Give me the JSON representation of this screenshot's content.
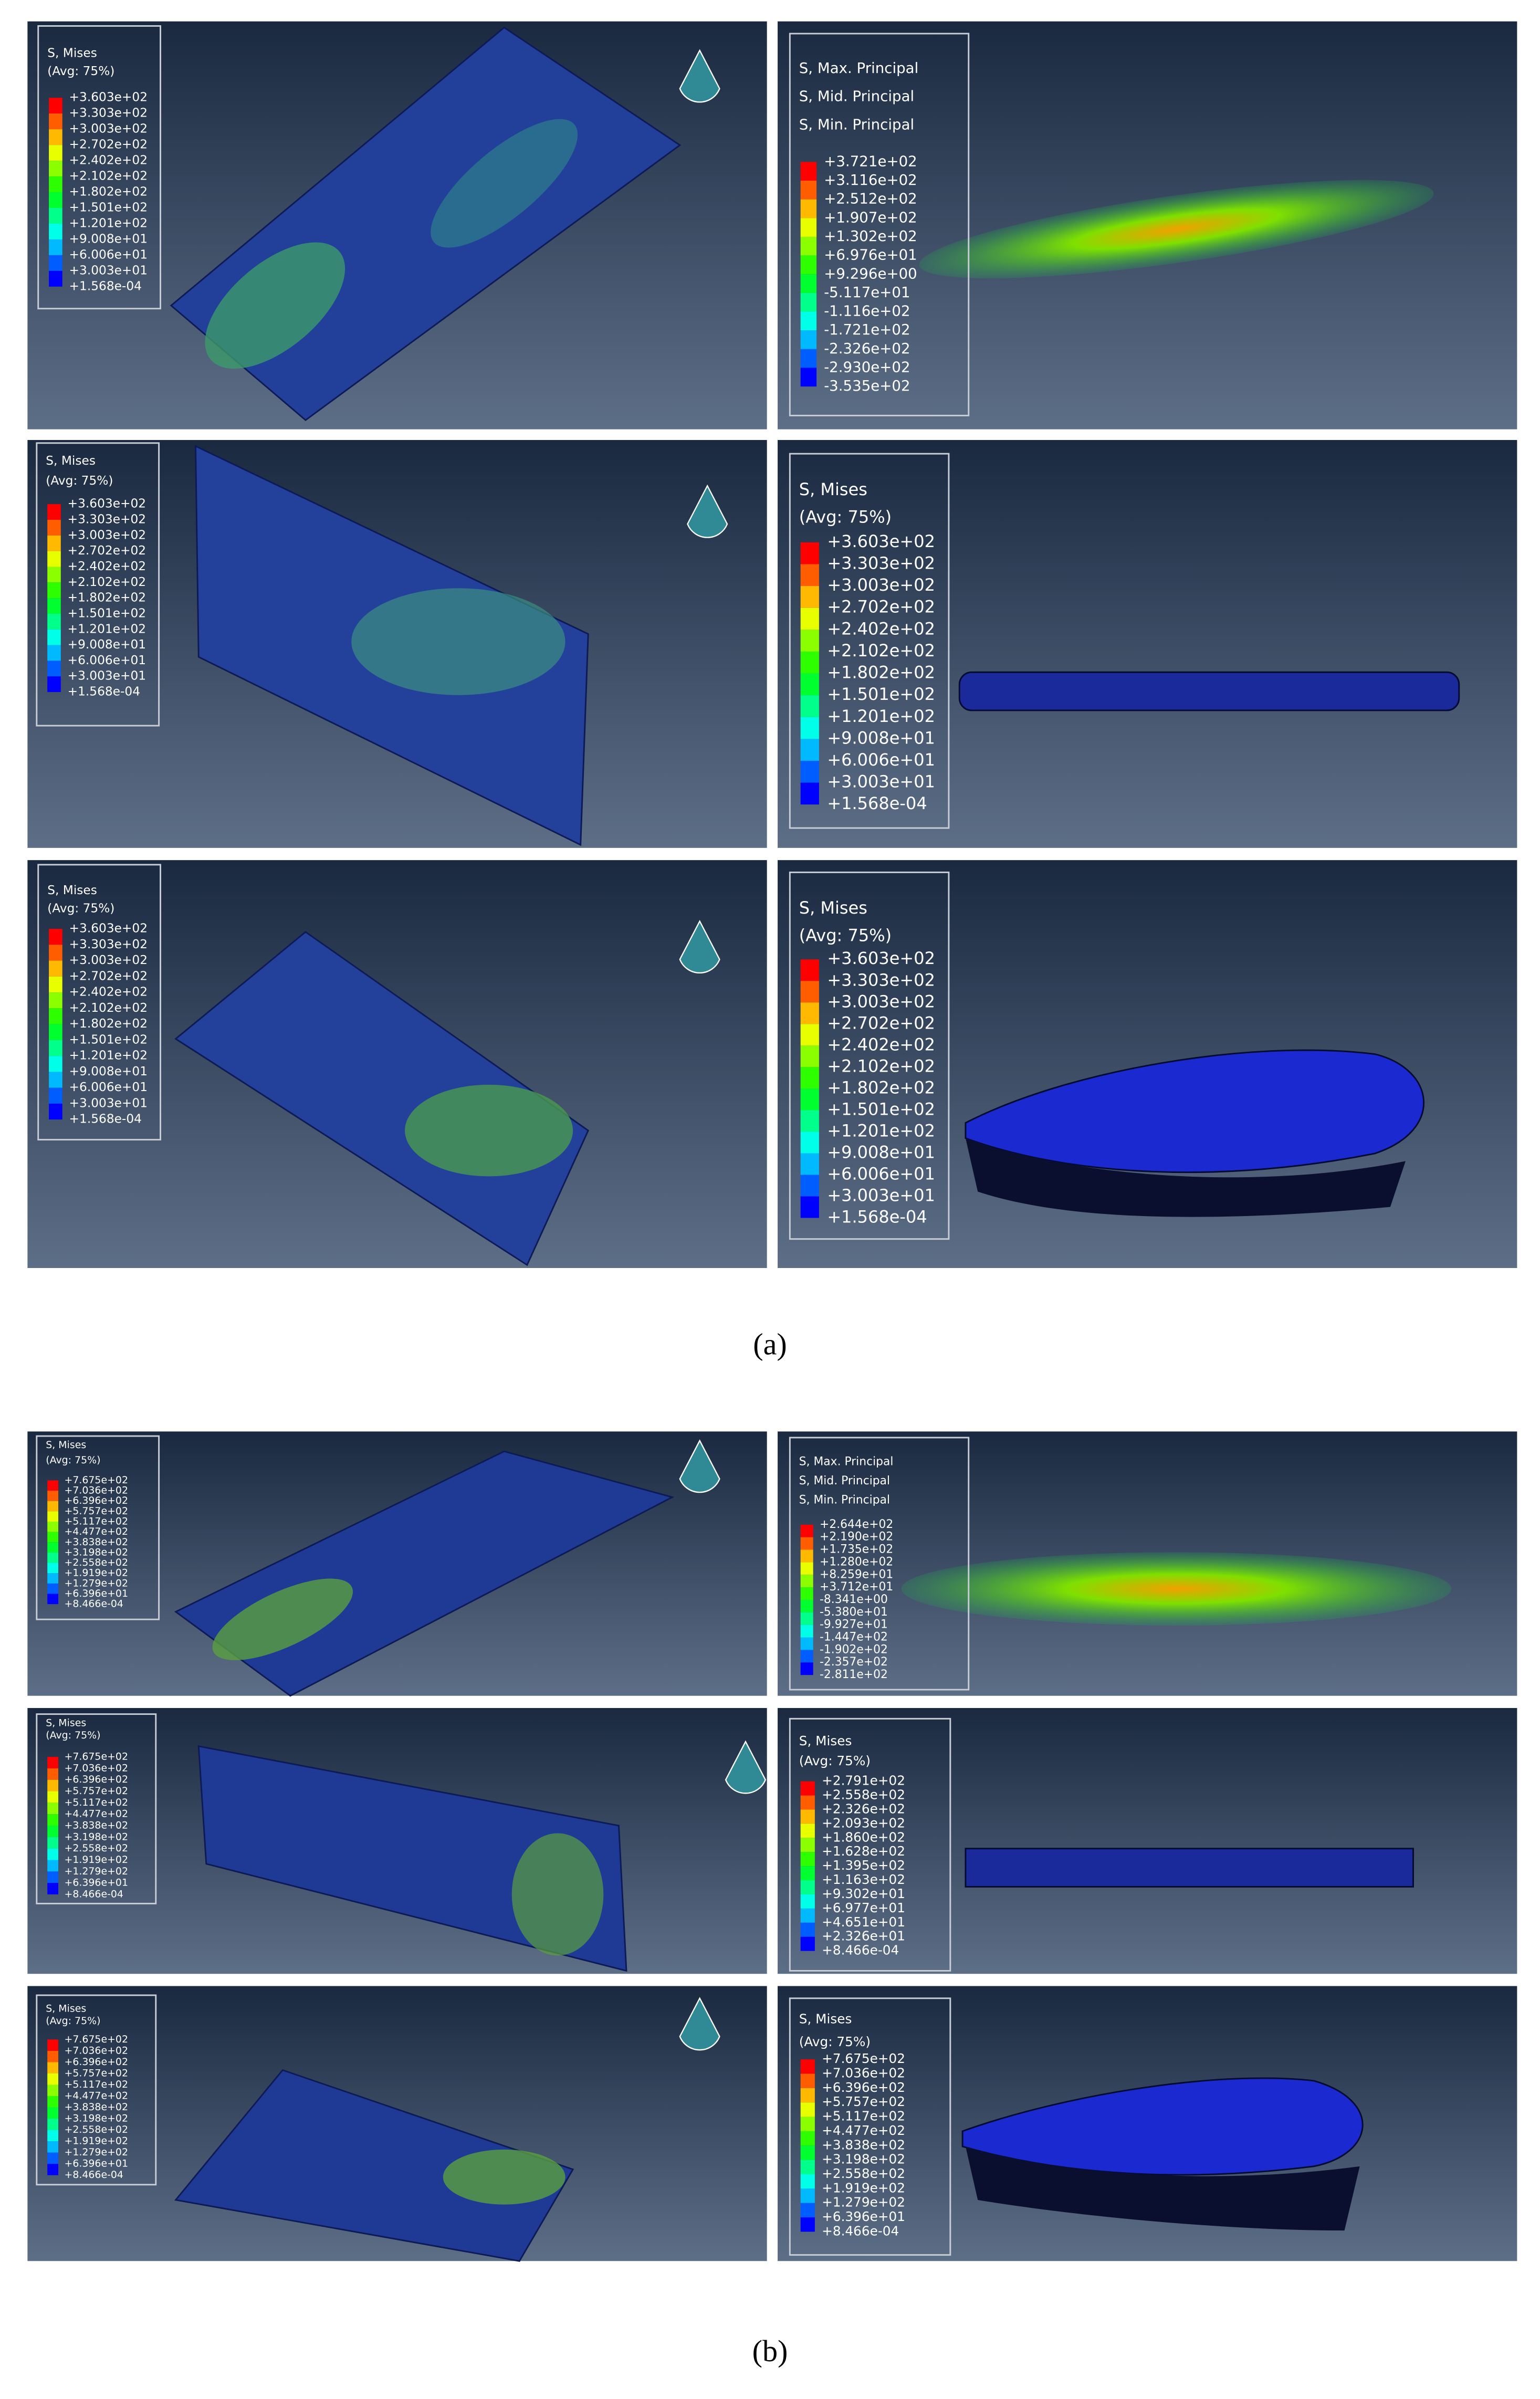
{
  "figures": [
    {
      "caption": "(a)",
      "panels": [
        {
          "legend_title": [
            "S, Mises",
            "(Avg: 75%)"
          ],
          "legend_labels": [
            "+3.603e+02",
            "+3.303e+02",
            "+3.003e+02",
            "+2.702e+02",
            "+2.402e+02",
            "+2.102e+02",
            "+1.802e+02",
            "+1.501e+02",
            "+1.201e+02",
            "+9.008e+01",
            "+6.006e+01",
            "+3.003e+01",
            "+1.568e-04"
          ]
        },
        {
          "legend_title": [
            "S, Max. Principal",
            "S, Mid. Principal",
            "S, Min. Principal"
          ],
          "legend_labels": [
            "+3.721e+02",
            "+3.116e+02",
            "+2.512e+02",
            "+1.907e+02",
            "+1.302e+02",
            "+6.976e+01",
            "+9.296e+00",
            "-5.117e+01",
            "-1.116e+02",
            "-1.721e+02",
            "-2.326e+02",
            "-2.930e+02",
            "-3.535e+02"
          ]
        },
        {
          "legend_title": [
            "S, Mises",
            "(Avg: 75%)"
          ],
          "legend_labels": [
            "+3.603e+02",
            "+3.303e+02",
            "+3.003e+02",
            "+2.702e+02",
            "+2.402e+02",
            "+2.102e+02",
            "+1.802e+02",
            "+1.501e+02",
            "+1.201e+02",
            "+9.008e+01",
            "+6.006e+01",
            "+3.003e+01",
            "+1.568e-04"
          ]
        },
        {
          "legend_title": [
            "S, Mises",
            "(Avg: 75%)"
          ],
          "legend_labels": [
            "+3.603e+02",
            "+3.303e+02",
            "+3.003e+02",
            "+2.702e+02",
            "+2.402e+02",
            "+2.102e+02",
            "+1.802e+02",
            "+1.501e+02",
            "+1.201e+02",
            "+9.008e+01",
            "+6.006e+01",
            "+3.003e+01",
            "+1.568e-04"
          ]
        },
        {
          "legend_title": [
            "S, Mises",
            "(Avg: 75%)"
          ],
          "legend_labels": [
            "+3.603e+02",
            "+3.303e+02",
            "+3.003e+02",
            "+2.702e+02",
            "+2.402e+02",
            "+2.102e+02",
            "+1.802e+02",
            "+1.501e+02",
            "+1.201e+02",
            "+9.008e+01",
            "+6.006e+01",
            "+3.003e+01",
            "+1.568e-04"
          ]
        },
        {
          "legend_title": [
            "S, Mises",
            "(Avg: 75%)"
          ],
          "legend_labels": [
            "+3.603e+02",
            "+3.303e+02",
            "+3.003e+02",
            "+2.702e+02",
            "+2.402e+02",
            "+2.102e+02",
            "+1.802e+02",
            "+1.501e+02",
            "+1.201e+02",
            "+9.008e+01",
            "+6.006e+01",
            "+3.003e+01",
            "+1.568e-04"
          ]
        }
      ]
    },
    {
      "caption": "(b)",
      "panels": [
        {
          "legend_title": [
            "S, Mises",
            "(Avg: 75%)"
          ],
          "legend_labels": [
            "+7.675e+02",
            "+7.036e+02",
            "+6.396e+02",
            "+5.757e+02",
            "+5.117e+02",
            "+4.477e+02",
            "+3.838e+02",
            "+3.198e+02",
            "+2.558e+02",
            "+1.919e+02",
            "+1.279e+02",
            "+6.396e+01",
            "+8.466e-04"
          ]
        },
        {
          "legend_title": [
            "S, Max. Principal",
            "S, Mid. Principal",
            "S, Min. Principal"
          ],
          "legend_labels": [
            "+2.644e+02",
            "+2.190e+02",
            "+1.735e+02",
            "+1.280e+02",
            "+8.259e+01",
            "+3.712e+01",
            "-8.341e+00",
            "-5.380e+01",
            "-9.927e+01",
            "-1.447e+02",
            "-1.902e+02",
            "-2.357e+02",
            "-2.811e+02"
          ]
        },
        {
          "legend_title": [
            "S, Mises",
            "(Avg: 75%)"
          ],
          "legend_labels": [
            "+7.675e+02",
            "+7.036e+02",
            "+6.396e+02",
            "+5.757e+02",
            "+5.117e+02",
            "+4.477e+02",
            "+3.838e+02",
            "+3.198e+02",
            "+2.558e+02",
            "+1.919e+02",
            "+1.279e+02",
            "+6.396e+01",
            "+8.466e-04"
          ]
        },
        {
          "legend_title": [
            "S, Mises",
            "(Avg: 75%)"
          ],
          "legend_labels": [
            "+2.791e+02",
            "+2.558e+02",
            "+2.326e+02",
            "+2.093e+02",
            "+1.860e+02",
            "+1.628e+02",
            "+1.395e+02",
            "+1.163e+02",
            "+9.302e+01",
            "+6.977e+01",
            "+4.651e+01",
            "+2.326e+01",
            "+8.466e-04"
          ]
        },
        {
          "legend_title": [
            "S, Mises",
            "(Avg: 75%)"
          ],
          "legend_labels": [
            "+7.675e+02",
            "+7.036e+02",
            "+6.396e+02",
            "+5.757e+02",
            "+5.117e+02",
            "+4.477e+02",
            "+3.838e+02",
            "+3.198e+02",
            "+2.558e+02",
            "+1.919e+02",
            "+1.279e+02",
            "+6.396e+01",
            "+8.466e-04"
          ]
        },
        {
          "legend_title": [
            "S, Mises",
            "(Avg: 75%)"
          ],
          "legend_labels": [
            "+7.675e+02",
            "+7.036e+02",
            "+6.396e+02",
            "+5.757e+02",
            "+5.117e+02",
            "+4.477e+02",
            "+3.838e+02",
            "+3.198e+02",
            "+2.558e+02",
            "+1.919e+02",
            "+1.279e+02",
            "+6.396e+01",
            "+8.466e-04"
          ]
        }
      ]
    }
  ]
}
